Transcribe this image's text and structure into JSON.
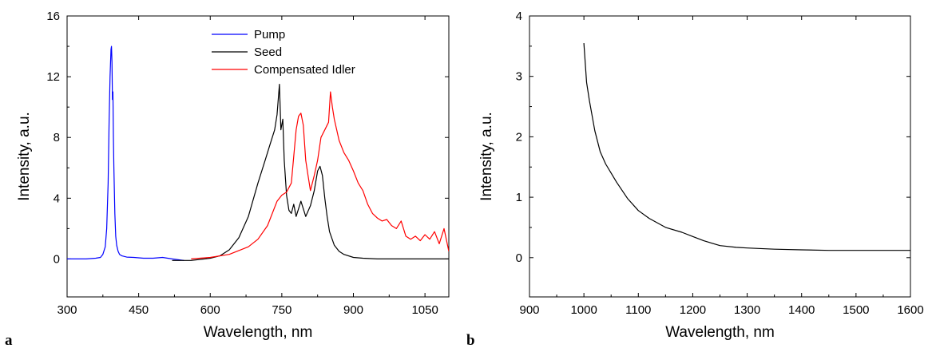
{
  "chart_data": [
    {
      "panel": "a",
      "type": "line",
      "title": "",
      "xlabel": "Wavelength, nm",
      "ylabel": "Intensity, a.u.",
      "xlim": [
        300,
        1100
      ],
      "ylim": [
        -2.5,
        16
      ],
      "xticks": [
        300,
        450,
        600,
        750,
        900,
        1050
      ],
      "yticks": [
        0,
        4,
        8,
        12,
        16
      ],
      "grid": false,
      "legend": "top-center",
      "series": [
        {
          "name": "Pump",
          "color": "#0000ff",
          "x": [
            300,
            340,
            360,
            370,
            375,
            380,
            383,
            386,
            388,
            390,
            392,
            393,
            394,
            395,
            396,
            397,
            398,
            400,
            402,
            404,
            407,
            410,
            415,
            425,
            440,
            460,
            480,
            500,
            520,
            545
          ],
          "y": [
            0,
            0,
            0.05,
            0.1,
            0.3,
            0.8,
            2.0,
            5.0,
            9.0,
            12.0,
            13.8,
            14.0,
            13.0,
            10.5,
            11.0,
            8.0,
            6.0,
            3.0,
            1.5,
            0.9,
            0.5,
            0.3,
            0.2,
            0.12,
            0.1,
            0.05,
            0.05,
            0.1,
            0,
            -0.1
          ]
        },
        {
          "name": "Seed",
          "color": "#000000",
          "x": [
            520,
            560,
            600,
            620,
            640,
            660,
            680,
            700,
            715,
            725,
            735,
            740,
            745,
            748,
            752,
            755,
            760,
            765,
            770,
            775,
            780,
            790,
            800,
            810,
            818,
            825,
            830,
            835,
            840,
            845,
            850,
            860,
            870,
            880,
            900,
            920,
            950,
            1000,
            1050,
            1100
          ],
          "y": [
            -0.1,
            -0.1,
            0.05,
            0.2,
            0.6,
            1.4,
            2.8,
            5.0,
            6.5,
            7.5,
            8.5,
            9.5,
            11.5,
            8.5,
            9.2,
            6.5,
            4.2,
            3.2,
            3.0,
            3.6,
            2.8,
            3.8,
            2.8,
            3.5,
            4.5,
            5.8,
            6.1,
            5.5,
            4.0,
            2.8,
            1.8,
            0.9,
            0.5,
            0.3,
            0.1,
            0.05,
            0,
            0,
            0,
            0
          ]
        },
        {
          "name": "Compensated Idler",
          "color": "#ff0000",
          "x": [
            560,
            600,
            640,
            680,
            700,
            720,
            740,
            750,
            760,
            770,
            780,
            785,
            790,
            795,
            800,
            805,
            810,
            818,
            825,
            832,
            840,
            848,
            852,
            856,
            860,
            870,
            880,
            890,
            900,
            910,
            920,
            930,
            940,
            950,
            960,
            970,
            980,
            990,
            1000,
            1010,
            1020,
            1030,
            1040,
            1050,
            1060,
            1070,
            1080,
            1090,
            1100
          ],
          "y": [
            0,
            0.1,
            0.3,
            0.8,
            1.3,
            2.2,
            3.8,
            4.2,
            4.4,
            5.0,
            8.5,
            9.4,
            9.6,
            8.8,
            6.5,
            5.5,
            4.5,
            5.5,
            6.5,
            8.0,
            8.5,
            9.0,
            11.0,
            10.0,
            9.2,
            7.8,
            7.0,
            6.5,
            5.8,
            5.0,
            4.5,
            3.6,
            3.0,
            2.7,
            2.5,
            2.6,
            2.2,
            2.0,
            2.5,
            1.5,
            1.3,
            1.5,
            1.2,
            1.6,
            1.3,
            1.8,
            1.0,
            2.0,
            0.5
          ]
        }
      ]
    },
    {
      "panel": "b",
      "type": "line",
      "title": "",
      "xlabel": "Wavelength, nm",
      "ylabel": "Intensity, a.u.",
      "xlim": [
        900,
        1600
      ],
      "ylim": [
        -0.65,
        4
      ],
      "xticks": [
        900,
        1000,
        1100,
        1200,
        1300,
        1400,
        1500,
        1600
      ],
      "yticks": [
        0,
        1,
        2,
        3,
        4
      ],
      "grid": false,
      "legend": "none",
      "series": [
        {
          "color": "#000000",
          "x": [
            1000,
            1005,
            1010,
            1020,
            1030,
            1040,
            1050,
            1060,
            1080,
            1100,
            1120,
            1150,
            1180,
            1200,
            1220,
            1250,
            1280,
            1300,
            1350,
            1400,
            1450,
            1500,
            1550,
            1600
          ],
          "y": [
            3.55,
            2.9,
            2.6,
            2.1,
            1.75,
            1.55,
            1.4,
            1.25,
            0.98,
            0.78,
            0.65,
            0.5,
            0.42,
            0.35,
            0.28,
            0.2,
            0.17,
            0.16,
            0.14,
            0.13,
            0.12,
            0.12,
            0.12,
            0.12
          ]
        }
      ]
    }
  ],
  "panel_labels": {
    "a": "a",
    "b": "b"
  }
}
